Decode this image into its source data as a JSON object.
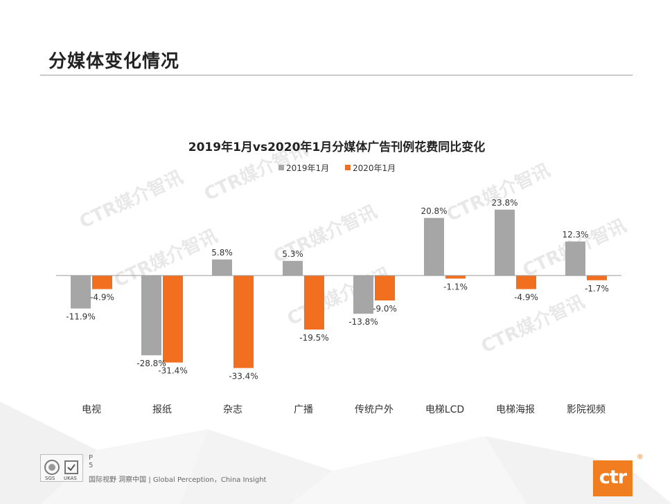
{
  "page": {
    "title": "分媒体变化情况",
    "page_number": "P 5",
    "tagline": "国际视野 洞察中国 | Global Perception，China Insight",
    "logo_text": "ctr",
    "registered_mark": "®",
    "cert_marks": [
      "SGS",
      "UKAS"
    ],
    "watermark": "CTR媒介智讯"
  },
  "colors": {
    "series_2019": "#a6a6a6",
    "series_2020": "#f26f1f",
    "brand": "#f07d1f"
  },
  "chart_data": {
    "type": "bar",
    "title": "2019年1月vs2020年1月分媒体广告刊例花费同比变化",
    "categories": [
      "电视",
      "报纸",
      "杂志",
      "广播",
      "传统户外",
      "电梯LCD",
      "电梯海报",
      "影院视频"
    ],
    "series": [
      {
        "name": "2019年1月",
        "values": [
          -11.9,
          -28.8,
          5.8,
          5.3,
          -13.8,
          20.8,
          23.8,
          12.3
        ],
        "labels": [
          "-11.9%",
          "-28.8%",
          "5.8%",
          "5.3%",
          "-13.8%",
          "20.8%",
          "23.8%",
          "12.3%"
        ]
      },
      {
        "name": "2020年1月",
        "values": [
          -4.9,
          -31.4,
          -33.4,
          -19.5,
          -9.0,
          -1.1,
          -4.9,
          -1.7
        ],
        "labels": [
          "-4.9%",
          "-31.4%",
          "-33.4%",
          "-19.5%",
          "-9.0%",
          "-1.1%",
          "-4.9%",
          "-1.7%"
        ]
      }
    ],
    "legend_position": "top-center",
    "grid": false
  }
}
